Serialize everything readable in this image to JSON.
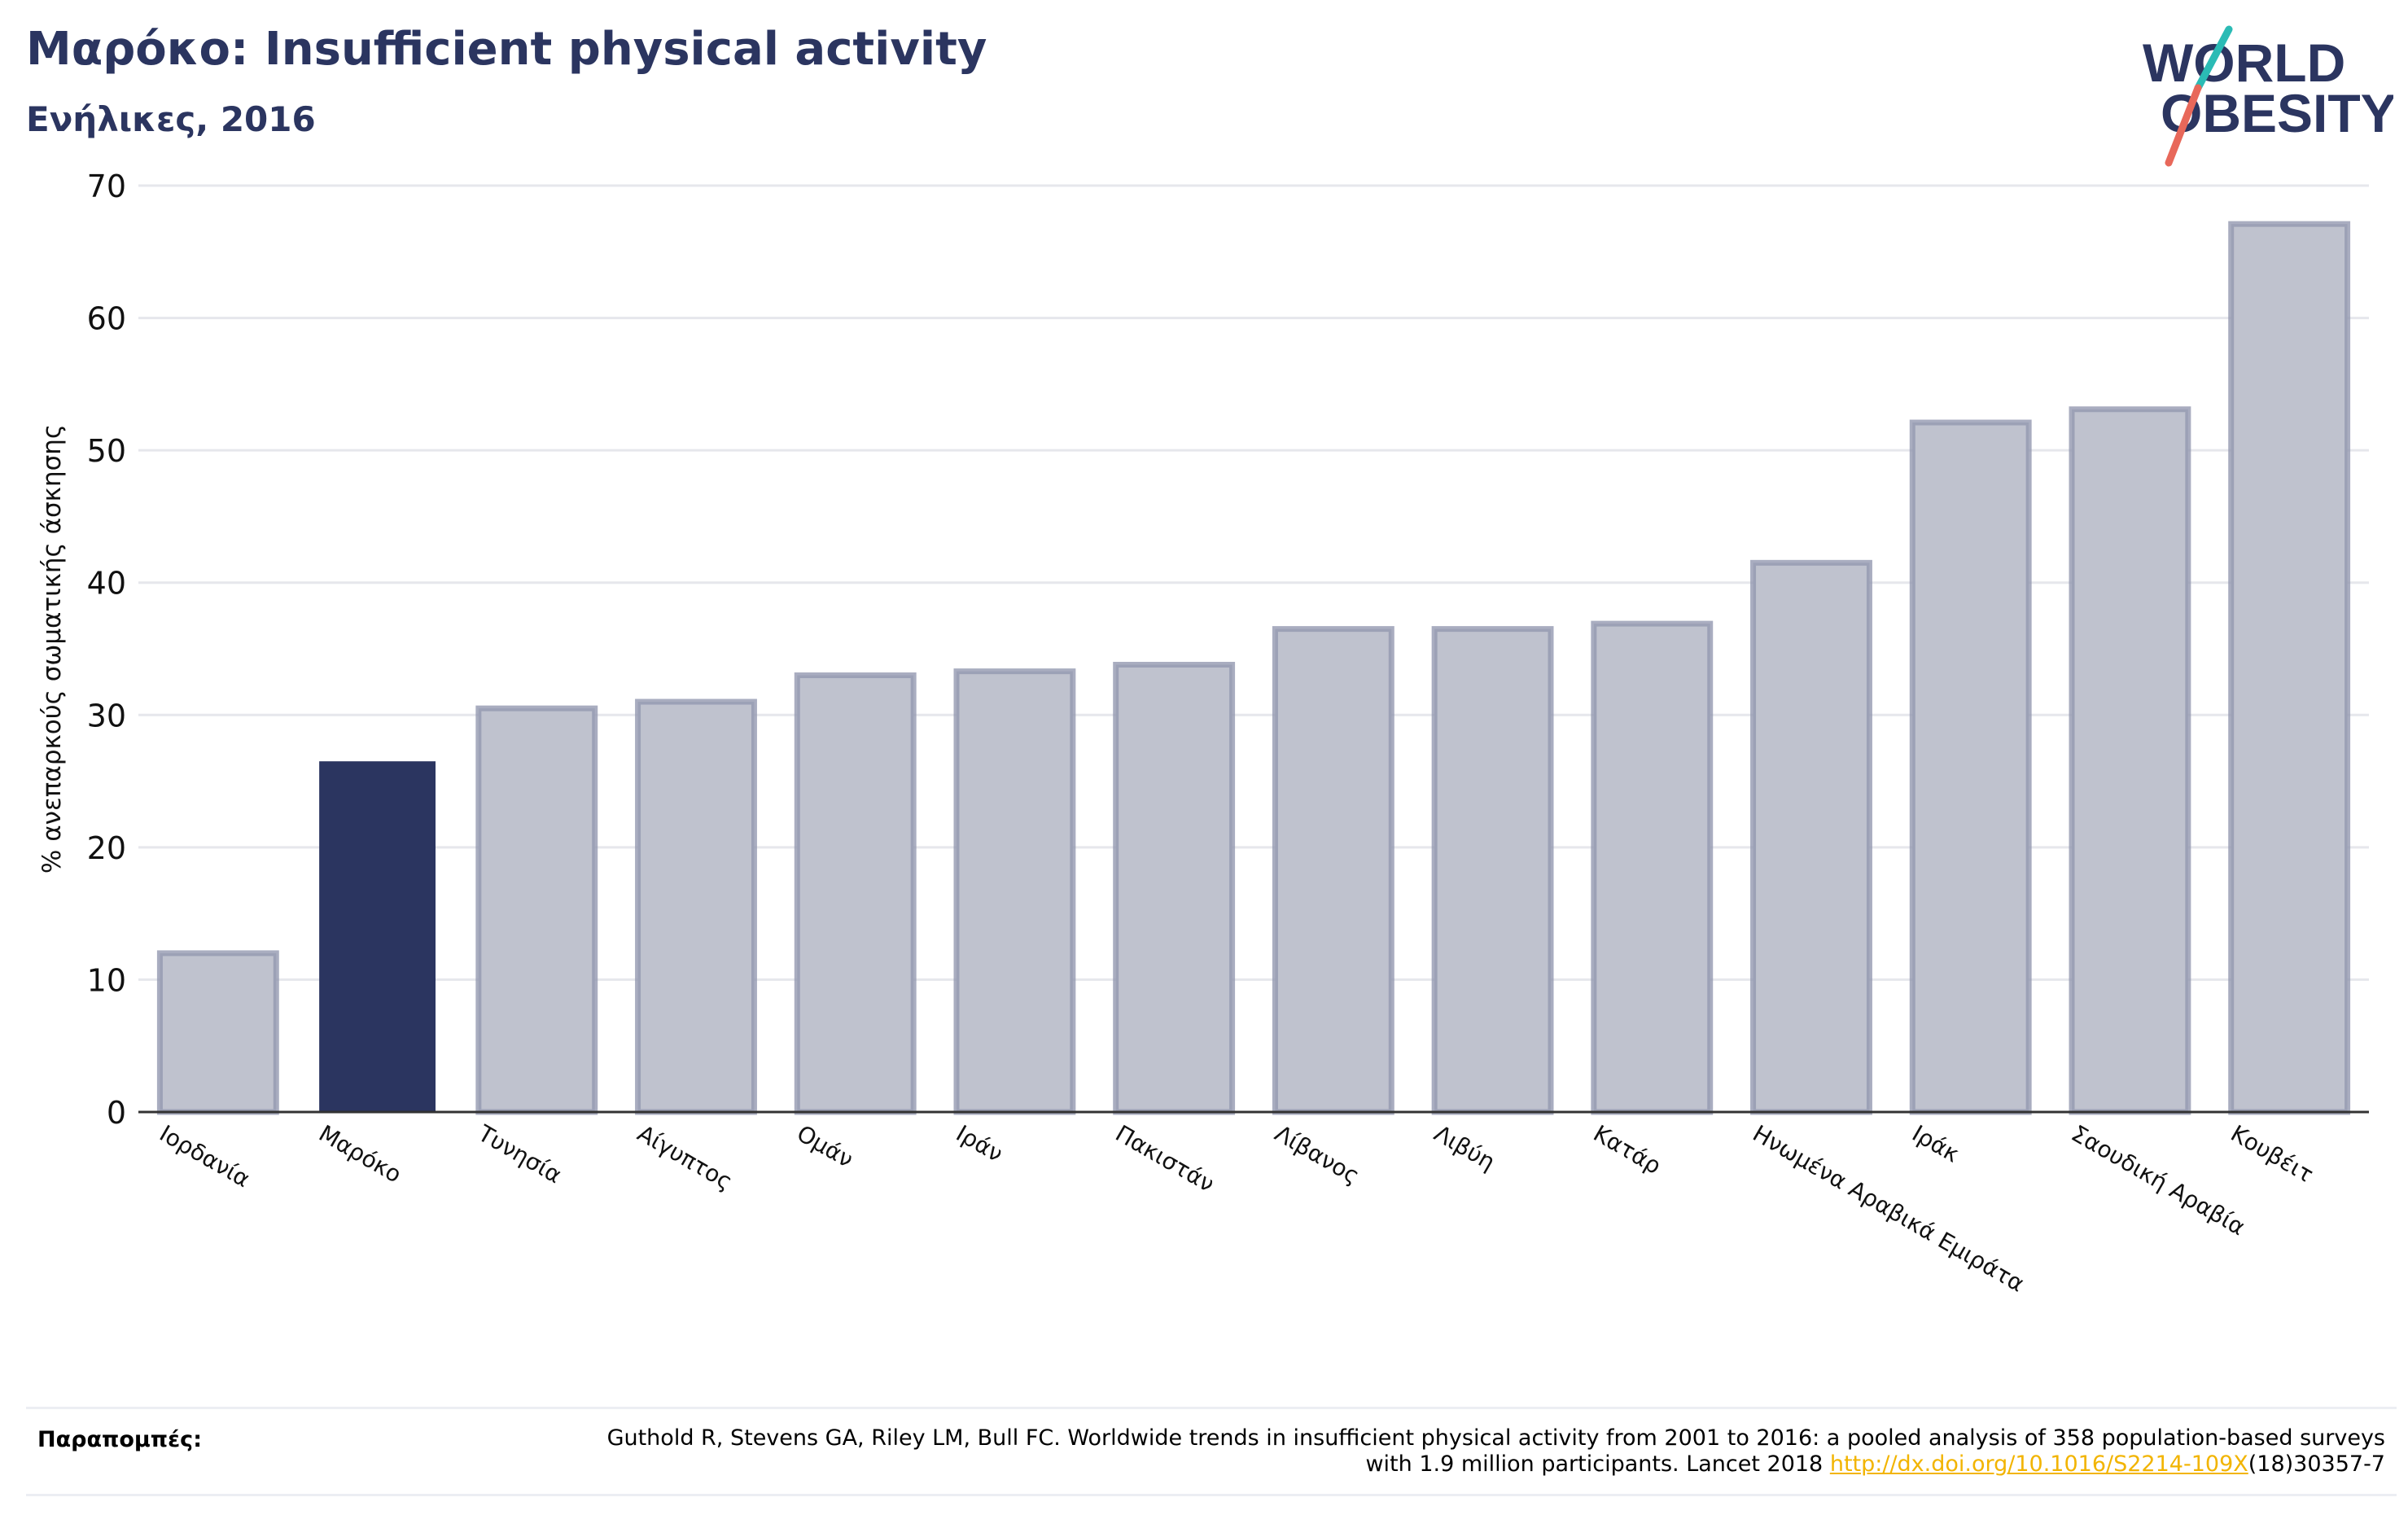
{
  "header": {
    "title": "Μαρόκο: Insufficient physical activity",
    "subtitle": "Ενήλικες, 2016"
  },
  "logo": {
    "line1": "WORLD",
    "line2": "OBESITY",
    "colors": {
      "text": "#2b3560",
      "slash_teal": "#2bbbb5",
      "slash_coral": "#e8685a"
    }
  },
  "chart_data": {
    "type": "bar",
    "title": "Μαρόκο: Insufficient physical activity",
    "subtitle": "Ενήλικες, 2016",
    "ylabel": "% ανεπαρκούς σωματικής άσκησης",
    "xlabel": "",
    "ylim": [
      0,
      70
    ],
    "yticks": [
      0,
      10,
      20,
      30,
      40,
      50,
      60,
      70
    ],
    "categories": [
      "Ιορδανία",
      "Μαρόκο",
      "Τυνησία",
      "Αίγυπτος",
      "Ομάν",
      "Ιράν",
      "Πακιστάν",
      "Λίβανος",
      "Λιβύη",
      "Κατάρ",
      "Ηνωμένα Αραβικά Εμιράτα",
      "Ιράκ",
      "Σαουδική Αραβία",
      "Κουβέιτ"
    ],
    "values": [
      12.0,
      26.5,
      30.5,
      31.0,
      33.0,
      33.3,
      33.8,
      36.5,
      36.5,
      36.9,
      41.5,
      52.1,
      53.1,
      67.1
    ],
    "highlight": "Μαρόκο",
    "grid": true,
    "colors": {
      "highlight": "#2b3560",
      "default_fill": "#bfc2ce",
      "default_stroke": "#9498b0",
      "grid": "#e6e7ec",
      "axis": "#333333"
    }
  },
  "references": {
    "label": "Παραπομπές:",
    "text": "Guthold R, Stevens GA, Riley LM, Bull FC. Worldwide trends in insufficient physical activity from 2001 to 2016: a pooled analysis of 358 population-based surveys with 1.9 million participants. Lancet 2018 ",
    "link": "http://dx.doi.org/10.1016/S2214-109X",
    "suffix": "(18)30357-7"
  }
}
